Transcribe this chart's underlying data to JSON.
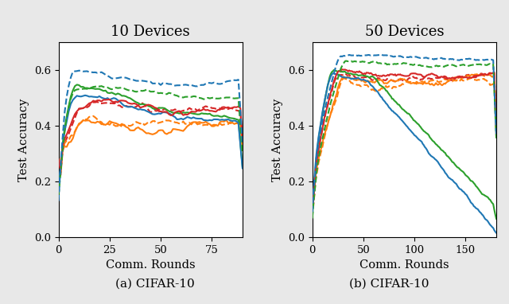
{
  "title_left": "10 Devices",
  "title_right": "50 Devices",
  "xlabel": "Comm. Rounds",
  "ylabel": "Test Accuracy",
  "caption_left": "(a) CIFAR-10",
  "caption_right": "(b) CIFAR-10",
  "ylim": [
    0,
    0.7
  ],
  "xlim_left": [
    0,
    90
  ],
  "xlim_right": [
    0,
    180
  ],
  "xticks_left": [
    0,
    25,
    50,
    75
  ],
  "xticks_right": [
    0,
    50,
    100,
    150
  ],
  "yticks": [
    0,
    0.2,
    0.4,
    0.6
  ],
  "c_blue": "#1f77b4",
  "c_green": "#2ca02c",
  "c_red": "#d62728",
  "c_orange": "#ff7f0e",
  "lw": 1.5,
  "bg_color": "#e8e8e8",
  "ax_bg": "white"
}
